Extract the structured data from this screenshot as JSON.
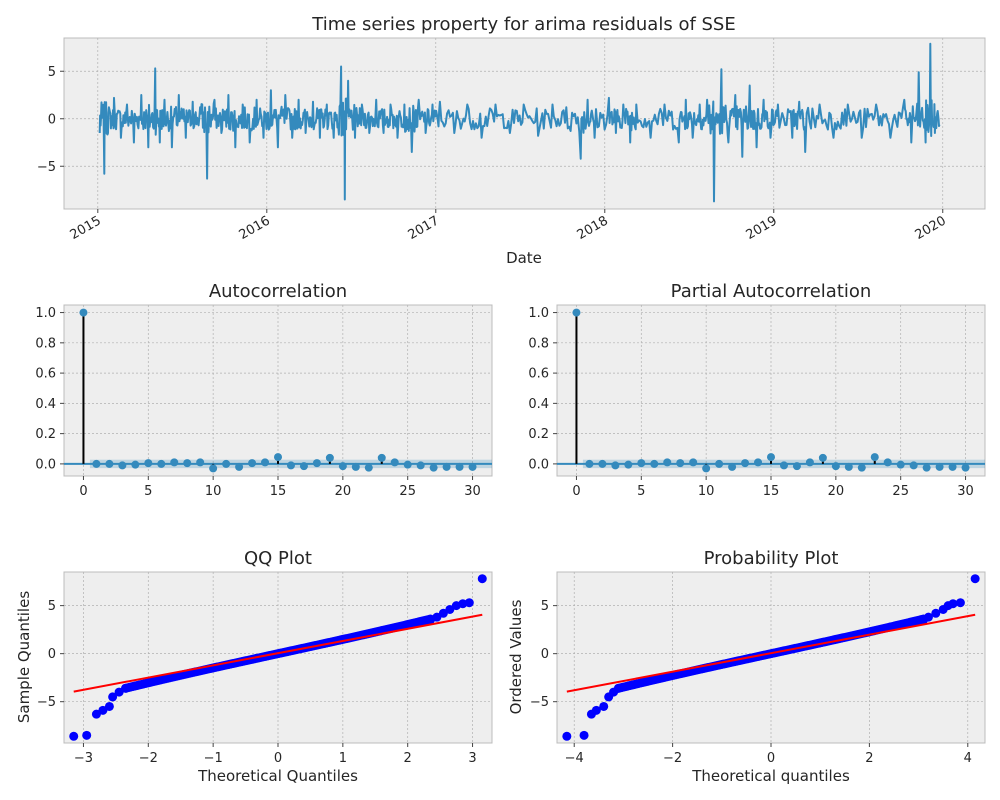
{
  "chart_data": [
    {
      "id": "ts",
      "type": "line",
      "title": "Time series property for arima residuals of SSE",
      "xlabel": "Date",
      "ylabel": "",
      "x_ticks": [
        "2015",
        "2016",
        "2017",
        "2018",
        "2019",
        "2020"
      ],
      "y_ticks": [
        -5,
        0,
        5
      ],
      "xlim": [
        2014.8,
        2020.25
      ],
      "ylim": [
        -9.5,
        8.5
      ],
      "grid": true,
      "line_color": "#348ABD",
      "series": [
        {
          "x": [
            "2015-01-05",
            "2015-01-15",
            "2015-01-25",
            "2015-02-05",
            "2015-02-20",
            "2015-03-05",
            "2015-03-20",
            "2015-04-05",
            "2015-04-20",
            "2015-05-05",
            "2015-05-15",
            "2015-05-25",
            "2015-06-10",
            "2015-06-25",
            "2015-07-10",
            "2015-07-25",
            "2015-08-10",
            "2015-08-25",
            "2015-09-10",
            "2015-09-25",
            "2015-10-10",
            "2015-10-25",
            "2015-11-10",
            "2015-11-25",
            "2015-12-10",
            "2015-12-25",
            "2016-01-10",
            "2016-01-25",
            "2016-02-10",
            "2016-02-25",
            "2016-03-10",
            "2016-03-25",
            "2016-04-10",
            "2016-04-25",
            "2016-05-10",
            "2016-05-25",
            "2016-06-10",
            "2016-06-18",
            "2016-06-25",
            "2016-07-10",
            "2016-07-25",
            "2016-08-10",
            "2016-08-25",
            "2016-09-10",
            "2016-09-25",
            "2016-10-10",
            "2016-10-25",
            "2016-11-10",
            "2016-11-25",
            "2016-12-10",
            "2016-12-25",
            "2017-01-10",
            "2017-02-10",
            "2017-03-10",
            "2017-04-10",
            "2017-05-10",
            "2017-06-10",
            "2017-07-10",
            "2017-08-10",
            "2017-09-10",
            "2017-10-10",
            "2017-11-10",
            "2017-11-25",
            "2017-12-10",
            "2018-01-10",
            "2018-01-25",
            "2018-02-10",
            "2018-02-25",
            "2018-03-10",
            "2018-04-10",
            "2018-05-10",
            "2018-06-10",
            "2018-06-25",
            "2018-07-10",
            "2018-07-25",
            "2018-08-10",
            "2018-08-25",
            "2018-09-10",
            "2018-09-25",
            "2018-10-10",
            "2018-10-25",
            "2018-11-10",
            "2018-11-25",
            "2018-12-10",
            "2018-12-25",
            "2019-01-10",
            "2019-02-10",
            "2019-02-25",
            "2019-03-10",
            "2019-04-10",
            "2019-05-10",
            "2019-06-10",
            "2019-07-10",
            "2019-08-10",
            "2019-09-10",
            "2019-10-10",
            "2019-10-25",
            "2019-11-10",
            "2019-11-25",
            "2019-12-05",
            "2019-12-15",
            "2019-12-25"
          ],
          "y": [
            -1.5,
            -5.8,
            1.2,
            2.2,
            -2.0,
            1.5,
            -2.5,
            2.5,
            -3.0,
            5.3,
            -2.5,
            2.0,
            -3.0,
            2.5,
            -2.0,
            1.8,
            1.2,
            -6.3,
            2.0,
            -1.5,
            2.5,
            -3.0,
            1.5,
            -2.5,
            2.0,
            -2.0,
            3.0,
            -3.0,
            2.5,
            -2.0,
            2.0,
            -1.5,
            1.8,
            -2.0,
            1.5,
            -2.0,
            5.5,
            -8.5,
            4.0,
            -2.0,
            1.5,
            -1.5,
            2.0,
            -1.5,
            1.5,
            -2.0,
            1.5,
            -3.5,
            2.0,
            -1.5,
            1.5,
            1.8,
            -1.5,
            1.5,
            -2.0,
            1.5,
            -1.5,
            1.5,
            -1.8,
            1.5,
            1.2,
            -4.2,
            2.0,
            -2.0,
            2.2,
            -1.5,
            1.5,
            -2.5,
            1.5,
            -2.0,
            1.5,
            -2.5,
            2.0,
            -2.0,
            1.5,
            2.0,
            -8.7,
            5.2,
            -2.5,
            2.5,
            -4.0,
            3.5,
            -3.0,
            2.0,
            -2.0,
            1.5,
            -2.0,
            1.8,
            -3.5,
            1.5,
            -2.0,
            1.5,
            -2.0,
            1.5,
            -2.0,
            2.0,
            -2.5,
            4.9,
            -2.5,
            7.9,
            -1.5,
            -0.6
          ]
        }
      ]
    },
    {
      "id": "acf",
      "type": "stem",
      "title": "Autocorrelation",
      "x_ticks": [
        0,
        5,
        10,
        15,
        20,
        25,
        30
      ],
      "y_ticks": [
        "0.0",
        "0.2",
        "0.4",
        "0.6",
        "0.8",
        "1.0"
      ],
      "xlim": [
        -1.5,
        31.5
      ],
      "ylim": [
        -0.08,
        1.05
      ],
      "lags": [
        0,
        1,
        2,
        3,
        4,
        5,
        6,
        7,
        8,
        9,
        10,
        11,
        12,
        13,
        14,
        15,
        16,
        17,
        18,
        19,
        20,
        21,
        22,
        23,
        24,
        25,
        26,
        27,
        28,
        29,
        30
      ],
      "values": [
        1.0,
        0.0,
        0.0,
        -0.01,
        -0.005,
        0.005,
        0.0,
        0.01,
        0.005,
        0.01,
        -0.03,
        0.0,
        -0.02,
        0.005,
        0.01,
        0.045,
        -0.01,
        -0.015,
        0.005,
        0.04,
        -0.015,
        -0.02,
        -0.025,
        0.04,
        0.01,
        -0.005,
        -0.01,
        -0.025,
        -0.02,
        -0.02,
        -0.02
      ],
      "confidence_band": 0.028,
      "grid": true
    },
    {
      "id": "pacf",
      "type": "stem",
      "title": "Partial Autocorrelation",
      "x_ticks": [
        0,
        5,
        10,
        15,
        20,
        25,
        30
      ],
      "y_ticks": [
        "0.0",
        "0.2",
        "0.4",
        "0.6",
        "0.8",
        "1.0"
      ],
      "xlim": [
        -1.5,
        31.5
      ],
      "ylim": [
        -0.08,
        1.05
      ],
      "lags": [
        0,
        1,
        2,
        3,
        4,
        5,
        6,
        7,
        8,
        9,
        10,
        11,
        12,
        13,
        14,
        15,
        16,
        17,
        18,
        19,
        20,
        21,
        22,
        23,
        24,
        25,
        26,
        27,
        28,
        29,
        30
      ],
      "values": [
        1.0,
        0.0,
        0.0,
        -0.01,
        -0.005,
        0.005,
        0.0,
        0.01,
        0.005,
        0.01,
        -0.03,
        0.0,
        -0.02,
        0.005,
        0.01,
        0.045,
        -0.01,
        -0.015,
        0.01,
        0.04,
        -0.015,
        -0.02,
        -0.025,
        0.045,
        0.01,
        -0.005,
        -0.01,
        -0.025,
        -0.02,
        -0.02,
        -0.025
      ],
      "confidence_band": 0.028,
      "grid": true
    },
    {
      "id": "qq",
      "type": "scatter",
      "title": "QQ Plot",
      "xlabel": "Theoretical Quantiles",
      "ylabel": "Sample Quantiles",
      "x_ticks": [
        -3,
        -2,
        -1,
        0,
        1,
        2,
        3
      ],
      "y_ticks": [
        -5,
        0,
        5
      ],
      "xlim": [
        -3.3,
        3.3
      ],
      "ylim": [
        -9.3,
        8.5
      ],
      "max_abs_x": 3.15,
      "tail_points": [
        [
          -3.15,
          -8.6
        ],
        [
          -2.95,
          -8.5
        ],
        [
          -2.8,
          -6.3
        ],
        [
          -2.7,
          -5.9
        ],
        [
          -2.6,
          -5.5
        ],
        [
          -2.55,
          -4.5
        ],
        [
          -2.45,
          -4.0
        ],
        [
          -2.35,
          -3.6
        ],
        [
          2.35,
          3.5
        ],
        [
          2.45,
          3.8
        ],
        [
          2.55,
          4.2
        ],
        [
          2.65,
          4.6
        ],
        [
          2.75,
          5.0
        ],
        [
          2.85,
          5.2
        ],
        [
          2.95,
          5.3
        ],
        [
          3.15,
          7.8
        ]
      ],
      "fit_line": [
        [
          -3.15,
          -3.95
        ],
        [
          3.15,
          4.05
        ]
      ],
      "point_color": "#0000ff",
      "line_color": "#ff0000",
      "grid": true
    },
    {
      "id": "prob",
      "type": "scatter",
      "title": "Probability Plot",
      "xlabel": "Theoretical quantiles",
      "ylabel": "Ordered Values",
      "x_ticks": [
        -4,
        -2,
        0,
        2,
        4
      ],
      "y_ticks": [
        -5,
        0,
        5
      ],
      "xlim": [
        -4.35,
        4.35
      ],
      "ylim": [
        -9.3,
        8.5
      ],
      "max_abs_x": 4.15,
      "tail_points": [
        [
          -4.15,
          -8.6
        ],
        [
          -3.8,
          -8.5
        ],
        [
          -3.65,
          -6.3
        ],
        [
          -3.55,
          -5.9
        ],
        [
          -3.4,
          -5.5
        ],
        [
          -3.3,
          -4.5
        ],
        [
          -3.2,
          -4.0
        ],
        [
          -3.1,
          -3.6
        ],
        [
          3.1,
          3.5
        ],
        [
          3.2,
          3.8
        ],
        [
          3.35,
          4.2
        ],
        [
          3.5,
          4.6
        ],
        [
          3.6,
          5.0
        ],
        [
          3.7,
          5.2
        ],
        [
          3.85,
          5.3
        ],
        [
          4.15,
          7.8
        ]
      ],
      "fit_line": [
        [
          -4.15,
          -3.95
        ],
        [
          4.15,
          4.05
        ]
      ],
      "point_color": "#0000ff",
      "line_color": "#ff0000",
      "grid": true
    }
  ]
}
